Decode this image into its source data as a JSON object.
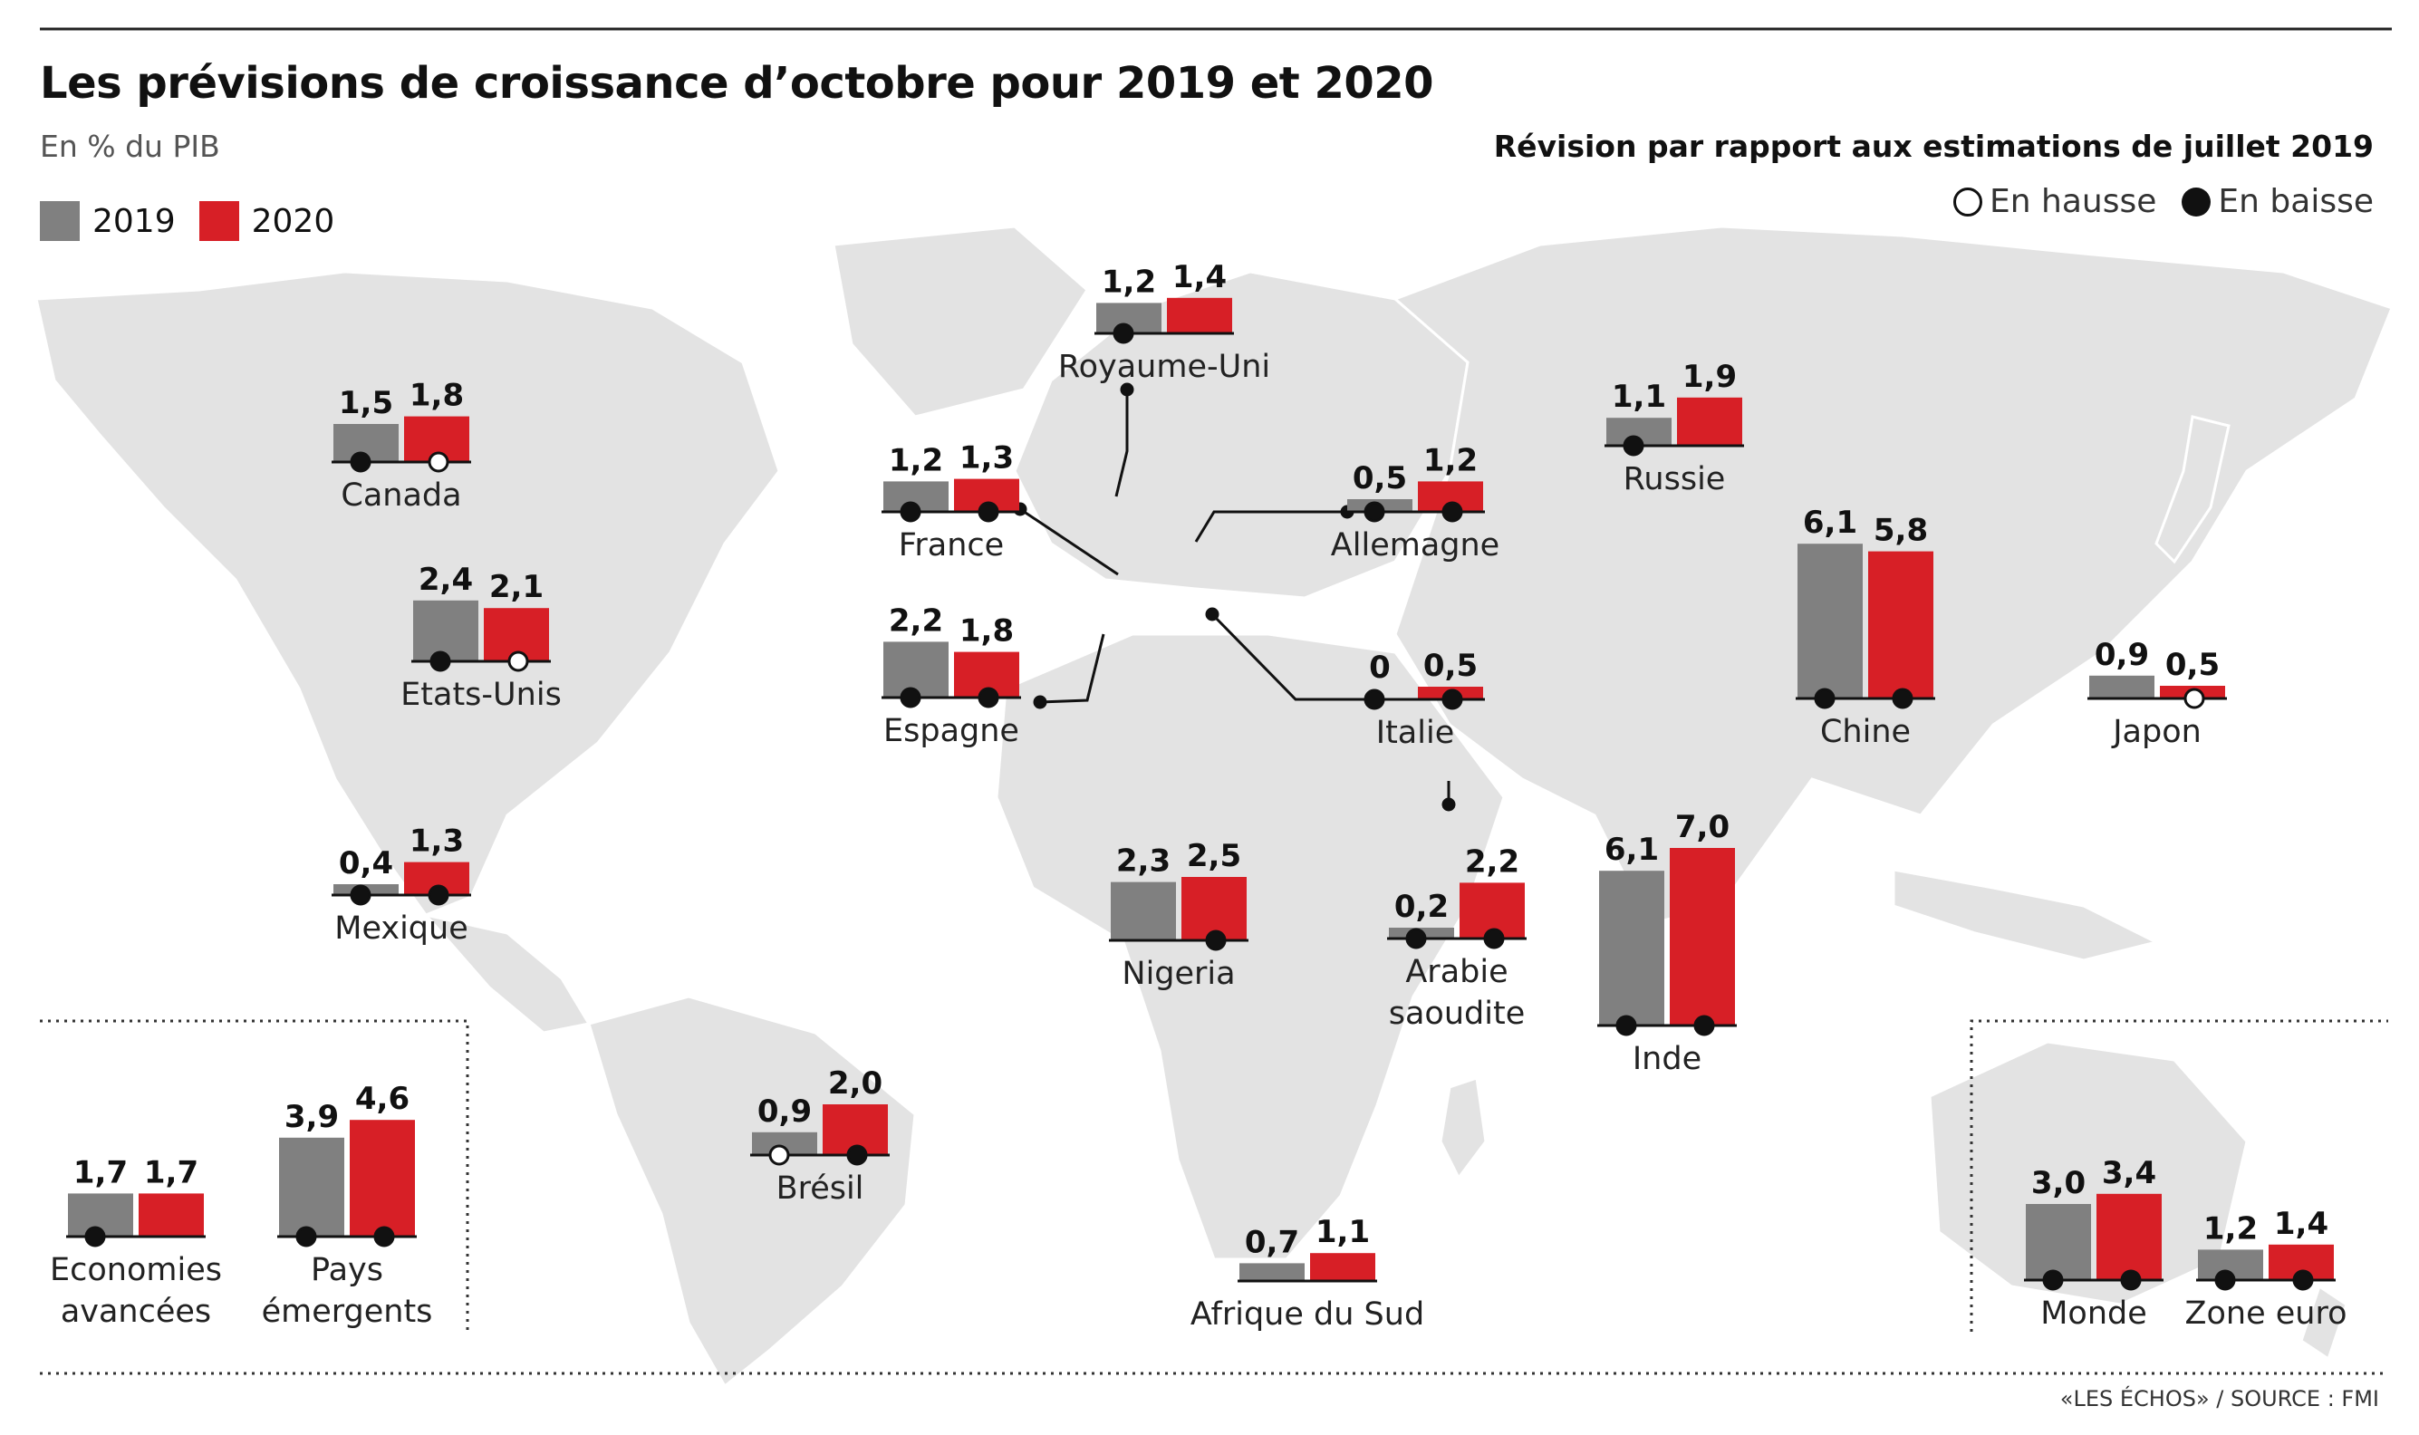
{
  "title": "Les prévisions de croissance d’octobre pour 2019 et 2020",
  "subtitle": "En % du PIB",
  "revision_title": "Révision par rapport aux estimations de juillet 2019",
  "legend": {
    "series": [
      {
        "name": "2019",
        "color": "#808080"
      },
      {
        "name": "2020",
        "color": "#d71f26"
      }
    ],
    "revision": [
      {
        "label": "En hausse",
        "icon": "open-circle-icon"
      },
      {
        "label": "En baisse",
        "icon": "filled-circle-icon"
      }
    ]
  },
  "source": "«LES ÉCHOS» / SOURCE : FMI",
  "colors": {
    "map": "#e3e3e3",
    "y2019": "#808080",
    "y2020": "#d71f26"
  },
  "chart_data": {
    "type": "bar",
    "series_names": [
      "2019",
      "2020"
    ],
    "unit": "% du PIB",
    "revision_legend": {
      "up": "En hausse",
      "down": "En baisse"
    },
    "entries": [
      {
        "name": "Canada",
        "v2019": 1.5,
        "v2020": 1.8,
        "l2019": "1,5",
        "l2020": "1,8",
        "r2019": "down",
        "r2020": "up"
      },
      {
        "name": "Etats-Unis",
        "v2019": 2.4,
        "v2020": 2.1,
        "l2019": "2,4",
        "l2020": "2,1",
        "r2019": "down",
        "r2020": "up"
      },
      {
        "name": "Mexique",
        "v2019": 0.4,
        "v2020": 1.3,
        "l2019": "0,4",
        "l2020": "1,3",
        "r2019": "down",
        "r2020": "down"
      },
      {
        "name": "Royaume-Uni",
        "v2019": 1.2,
        "v2020": 1.4,
        "l2019": "1,2",
        "l2020": "1,4",
        "r2019": "down",
        "r2020": "none"
      },
      {
        "name": "France",
        "v2019": 1.2,
        "v2020": 1.3,
        "l2019": "1,2",
        "l2020": "1,3",
        "r2019": "down",
        "r2020": "down"
      },
      {
        "name": "Espagne",
        "v2019": 2.2,
        "v2020": 1.8,
        "l2019": "2,2",
        "l2020": "1,8",
        "r2019": "down",
        "r2020": "down"
      },
      {
        "name": "Allemagne",
        "v2019": 0.5,
        "v2020": 1.2,
        "l2019": "0,5",
        "l2020": "1,2",
        "r2019": "down",
        "r2020": "down"
      },
      {
        "name": "Italie",
        "v2019": 0,
        "v2020": 0.5,
        "l2019": "0",
        "l2020": "0,5",
        "r2019": "down",
        "r2020": "down"
      },
      {
        "name": "Russie",
        "v2019": 1.1,
        "v2020": 1.9,
        "l2019": "1,1",
        "l2020": "1,9",
        "r2019": "down",
        "r2020": "none"
      },
      {
        "name": "Chine",
        "v2019": 6.1,
        "v2020": 5.8,
        "l2019": "6,1",
        "l2020": "5,8",
        "r2019": "down",
        "r2020": "down"
      },
      {
        "name": "Japon",
        "v2019": 0.9,
        "v2020": 0.5,
        "l2019": "0,9",
        "l2020": "0,5",
        "r2019": "none",
        "r2020": "up"
      },
      {
        "name": "Nigeria",
        "v2019": 2.3,
        "v2020": 2.5,
        "l2019": "2,3",
        "l2020": "2,5",
        "r2019": "none",
        "r2020": "down"
      },
      {
        "name": "Arabie saoudite",
        "v2019": 0.2,
        "v2020": 2.2,
        "l2019": "0,2",
        "l2020": "2,2",
        "r2019": "down",
        "r2020": "down"
      },
      {
        "name": "Inde",
        "v2019": 6.1,
        "v2020": 7.0,
        "l2019": "6,1",
        "l2020": "7,0",
        "r2019": "down",
        "r2020": "down"
      },
      {
        "name": "Brésil",
        "v2019": 0.9,
        "v2020": 2.0,
        "l2019": "0,9",
        "l2020": "2,0",
        "r2019": "up",
        "r2020": "down"
      },
      {
        "name": "Afrique du Sud",
        "v2019": 0.7,
        "v2020": 1.1,
        "l2019": "0,7",
        "l2020": "1,1",
        "r2019": "none",
        "r2020": "none"
      },
      {
        "name": "Economies avancées",
        "v2019": 1.7,
        "v2020": 1.7,
        "l2019": "1,7",
        "l2020": "1,7",
        "r2019": "down",
        "r2020": "none"
      },
      {
        "name": "Pays émergents",
        "v2019": 3.9,
        "v2020": 4.6,
        "l2019": "3,9",
        "l2020": "4,6",
        "r2019": "down",
        "r2020": "down"
      },
      {
        "name": "Monde",
        "v2019": 3.0,
        "v2020": 3.4,
        "l2019": "3,0",
        "l2020": "3,4",
        "r2019": "down",
        "r2020": "down"
      },
      {
        "name": "Zone euro",
        "v2019": 1.2,
        "v2020": 1.4,
        "l2019": "1,2",
        "l2020": "1,4",
        "r2019": "down",
        "r2020": "down"
      }
    ]
  }
}
